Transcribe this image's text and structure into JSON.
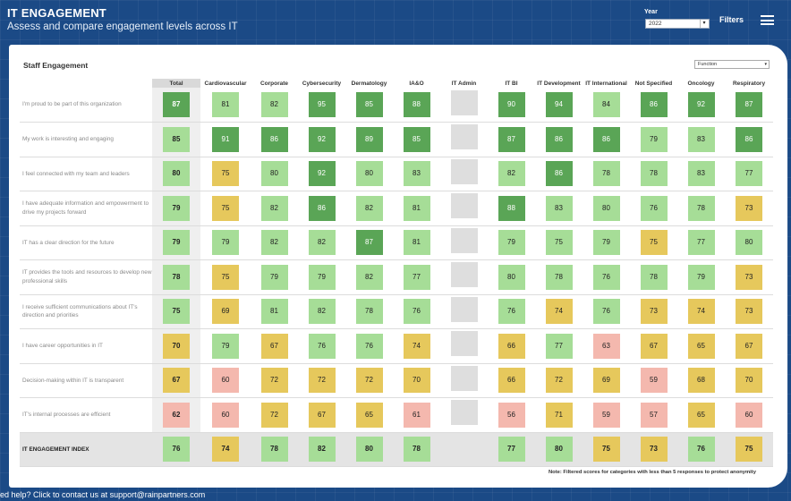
{
  "header": {
    "title": "IT ENGAGEMENT",
    "subtitle": "Assess and compare engagement levels across IT",
    "year_label": "Year",
    "year_value": "2022",
    "filters_label": "Filters"
  },
  "card": {
    "title": "Staff Engagement",
    "function_select": "Function",
    "note": "Note: Filtered scores for categories with less than 5 responses to protect anonymity"
  },
  "footer": {
    "contact_text": "ed help? Click to contact us at support@rainpartners.com"
  },
  "colors": {
    "dark_green": "#5aa556",
    "light_green": "#a6dd97",
    "yellow": "#e6c85c",
    "pink": "#f4b8ae",
    "filtered_gray": "#dedede",
    "header_blue": "#1b4a86"
  },
  "table": {
    "columns": [
      "Total",
      "Cardiovascular",
      "Corporate",
      "Cybersecurity",
      "Dermatology",
      "IA&O",
      "IT Admin",
      "IT BI",
      "IT Development",
      "IT International",
      "Not Specified",
      "Oncology",
      "Respiratory"
    ],
    "rows": [
      {
        "q": "I'm proud to be part of this organization",
        "v": [
          "87",
          "81",
          "82",
          "95",
          "85",
          "88",
          "",
          "90",
          "94",
          "84",
          "86",
          "92",
          "87"
        ],
        "c": [
          "dg",
          "lg",
          "lg",
          "dg",
          "dg",
          "dg",
          "gr",
          "dg",
          "dg",
          "lg",
          "dg",
          "dg",
          "dg"
        ]
      },
      {
        "q": "My work is interesting and engaging",
        "v": [
          "85",
          "91",
          "86",
          "92",
          "89",
          "85",
          "",
          "87",
          "86",
          "86",
          "79",
          "83",
          "86"
        ],
        "c": [
          "lg",
          "dg",
          "dg",
          "dg",
          "dg",
          "dg",
          "gr",
          "dg",
          "dg",
          "dg",
          "lg",
          "lg",
          "dg"
        ]
      },
      {
        "q": "I feel connected with my team and leaders",
        "v": [
          "80",
          "75",
          "80",
          "92",
          "80",
          "83",
          "",
          "82",
          "86",
          "78",
          "78",
          "83",
          "77"
        ],
        "c": [
          "lg",
          "yl",
          "lg",
          "dg",
          "lg",
          "lg",
          "gr",
          "lg",
          "dg",
          "lg",
          "lg",
          "lg",
          "lg"
        ]
      },
      {
        "q": "I have adequate information and empowerment to drive my projects forward",
        "v": [
          "79",
          "75",
          "82",
          "86",
          "82",
          "81",
          "",
          "88",
          "83",
          "80",
          "76",
          "78",
          "73"
        ],
        "c": [
          "lg",
          "yl",
          "lg",
          "dg",
          "lg",
          "lg",
          "gr",
          "dg",
          "lg",
          "lg",
          "lg",
          "lg",
          "yl"
        ]
      },
      {
        "q": "IT has a clear direction for the future",
        "v": [
          "79",
          "79",
          "82",
          "82",
          "87",
          "81",
          "",
          "79",
          "75",
          "79",
          "75",
          "77",
          "80"
        ],
        "c": [
          "lg",
          "lg",
          "lg",
          "lg",
          "dg",
          "lg",
          "gr",
          "lg",
          "lg",
          "lg",
          "yl",
          "lg",
          "lg"
        ]
      },
      {
        "q": "IT provides the tools and resources to develop new professional skills",
        "v": [
          "78",
          "75",
          "79",
          "79",
          "82",
          "77",
          "",
          "80",
          "78",
          "76",
          "78",
          "79",
          "73"
        ],
        "c": [
          "lg",
          "yl",
          "lg",
          "lg",
          "lg",
          "lg",
          "gr",
          "lg",
          "lg",
          "lg",
          "lg",
          "lg",
          "yl"
        ]
      },
      {
        "q": "I receive sufficient communications about IT's direction and priorities",
        "v": [
          "75",
          "69",
          "81",
          "82",
          "78",
          "76",
          "",
          "76",
          "74",
          "76",
          "73",
          "74",
          "73"
        ],
        "c": [
          "lg",
          "yl",
          "lg",
          "lg",
          "lg",
          "lg",
          "gr",
          "lg",
          "yl",
          "lg",
          "yl",
          "yl",
          "yl"
        ]
      },
      {
        "q": "I have career opportunities in IT",
        "v": [
          "70",
          "79",
          "67",
          "76",
          "76",
          "74",
          "",
          "66",
          "77",
          "63",
          "67",
          "65",
          "67"
        ],
        "c": [
          "yl",
          "lg",
          "yl",
          "lg",
          "lg",
          "yl",
          "gr",
          "yl",
          "lg",
          "pk",
          "yl",
          "yl",
          "yl"
        ]
      },
      {
        "q": "Decision-making within IT is transparent",
        "v": [
          "67",
          "60",
          "72",
          "72",
          "72",
          "70",
          "",
          "66",
          "72",
          "69",
          "59",
          "68",
          "70"
        ],
        "c": [
          "yl",
          "pk",
          "yl",
          "yl",
          "yl",
          "yl",
          "gr",
          "yl",
          "yl",
          "yl",
          "pk",
          "yl",
          "yl"
        ]
      },
      {
        "q": "IT's internal processes are efficient",
        "v": [
          "62",
          "60",
          "72",
          "67",
          "65",
          "61",
          "",
          "56",
          "71",
          "59",
          "57",
          "65",
          "60"
        ],
        "c": [
          "pk",
          "pk",
          "yl",
          "yl",
          "yl",
          "pk",
          "gr",
          "pk",
          "yl",
          "pk",
          "pk",
          "yl",
          "pk"
        ]
      }
    ],
    "index_row": {
      "q": "IT ENGAGEMENT INDEX",
      "v": [
        "76",
        "74",
        "78",
        "82",
        "80",
        "78",
        "",
        "77",
        "80",
        "75",
        "73",
        "76",
        "75"
      ],
      "c": [
        "lg",
        "yl",
        "lg",
        "lg",
        "lg",
        "lg",
        "none",
        "lg",
        "lg",
        "yl",
        "yl",
        "lg",
        "yl"
      ]
    }
  }
}
